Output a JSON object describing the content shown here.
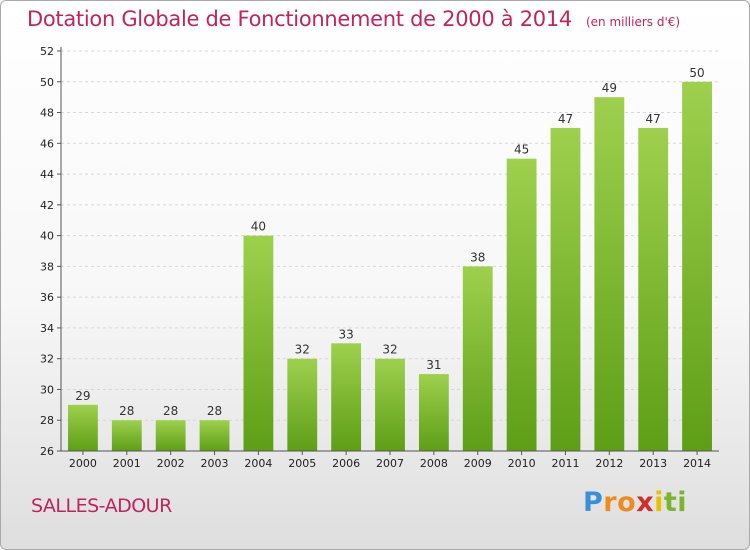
{
  "chart_data": {
    "type": "bar",
    "title": "Dotation Globale de Fonctionnement de 2000 à 2014",
    "unit": "(en milliers d'€)",
    "categories": [
      "2000",
      "2001",
      "2002",
      "2003",
      "2004",
      "2005",
      "2006",
      "2007",
      "2008",
      "2009",
      "2010",
      "2011",
      "2012",
      "2013",
      "2014"
    ],
    "values": [
      29,
      28,
      28,
      28,
      40,
      32,
      33,
      32,
      31,
      38,
      45,
      47,
      49,
      47,
      50
    ],
    "ylim": [
      26,
      52
    ],
    "yticks": [
      26,
      28,
      30,
      32,
      34,
      36,
      38,
      40,
      42,
      44,
      46,
      48,
      50,
      52
    ],
    "grid": true,
    "bar_color_top": "#9ed04e",
    "bar_color_bottom": "#5e9e16",
    "title_color": "#c0245c"
  },
  "location": "SALLES-ADOUR",
  "logo": {
    "letters": [
      {
        "ch": "P",
        "color": "#3a8fd6"
      },
      {
        "ch": "r",
        "color": "#f08a1c"
      },
      {
        "ch": "o",
        "color": "#f08a1c"
      },
      {
        "ch": "x",
        "color": "#d42b2b"
      },
      {
        "ch": "i",
        "color": "#e6c200"
      },
      {
        "ch": "t",
        "color": "#7ab52a"
      },
      {
        "ch": "i",
        "color": "#7ab52a"
      }
    ]
  }
}
